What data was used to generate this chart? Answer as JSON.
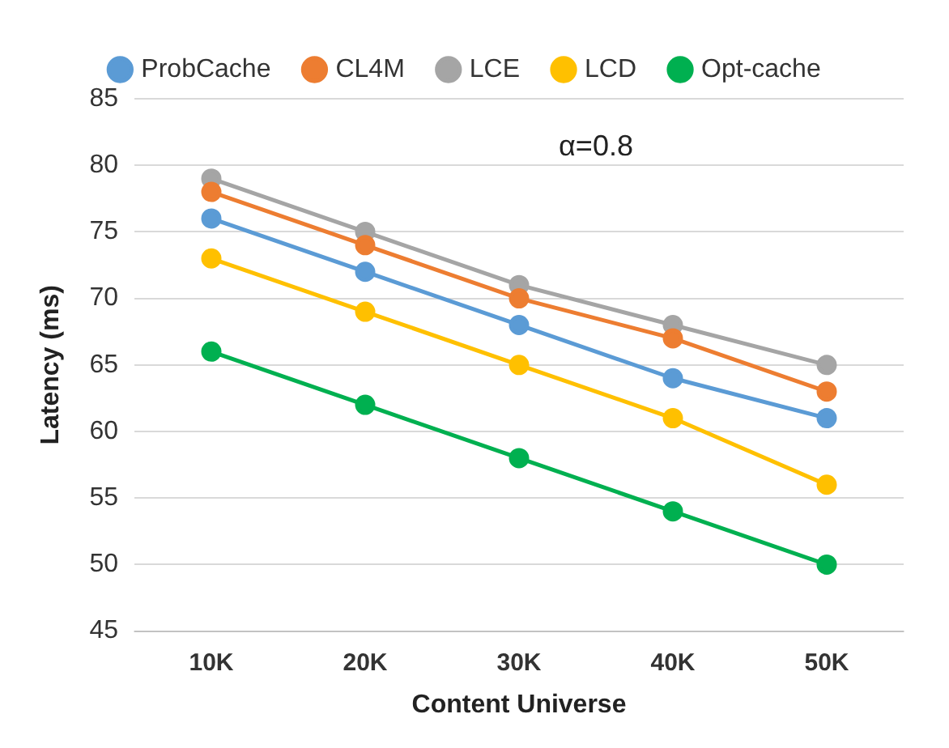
{
  "chart_data": {
    "type": "line",
    "xlabel": "Content Universe",
    "ylabel": "Latency (ms)",
    "categories": [
      "10K",
      "20K",
      "30K",
      "40K",
      "50K"
    ],
    "series": [
      {
        "name": "ProbCache",
        "color": "#5b9bd5",
        "values": [
          76,
          72,
          68,
          64,
          61
        ]
      },
      {
        "name": "CL4M",
        "color": "#ed7d31",
        "values": [
          78,
          74,
          70,
          67,
          63
        ]
      },
      {
        "name": "LCE",
        "color": "#a5a5a5",
        "values": [
          79,
          75,
          71,
          68,
          65
        ]
      },
      {
        "name": "LCD",
        "color": "#ffc000",
        "values": [
          73,
          69,
          65,
          61,
          56
        ]
      },
      {
        "name": "Opt-cache",
        "color": "#00b050",
        "values": [
          66,
          62,
          58,
          54,
          50
        ]
      }
    ],
    "ylim": [
      45,
      85
    ],
    "yticks": [
      45,
      50,
      55,
      60,
      65,
      70,
      75,
      80,
      85
    ],
    "grid": "y",
    "legend": "top",
    "marker": "circle",
    "line_style": "solid",
    "annotations": [
      "α=0.8"
    ]
  }
}
